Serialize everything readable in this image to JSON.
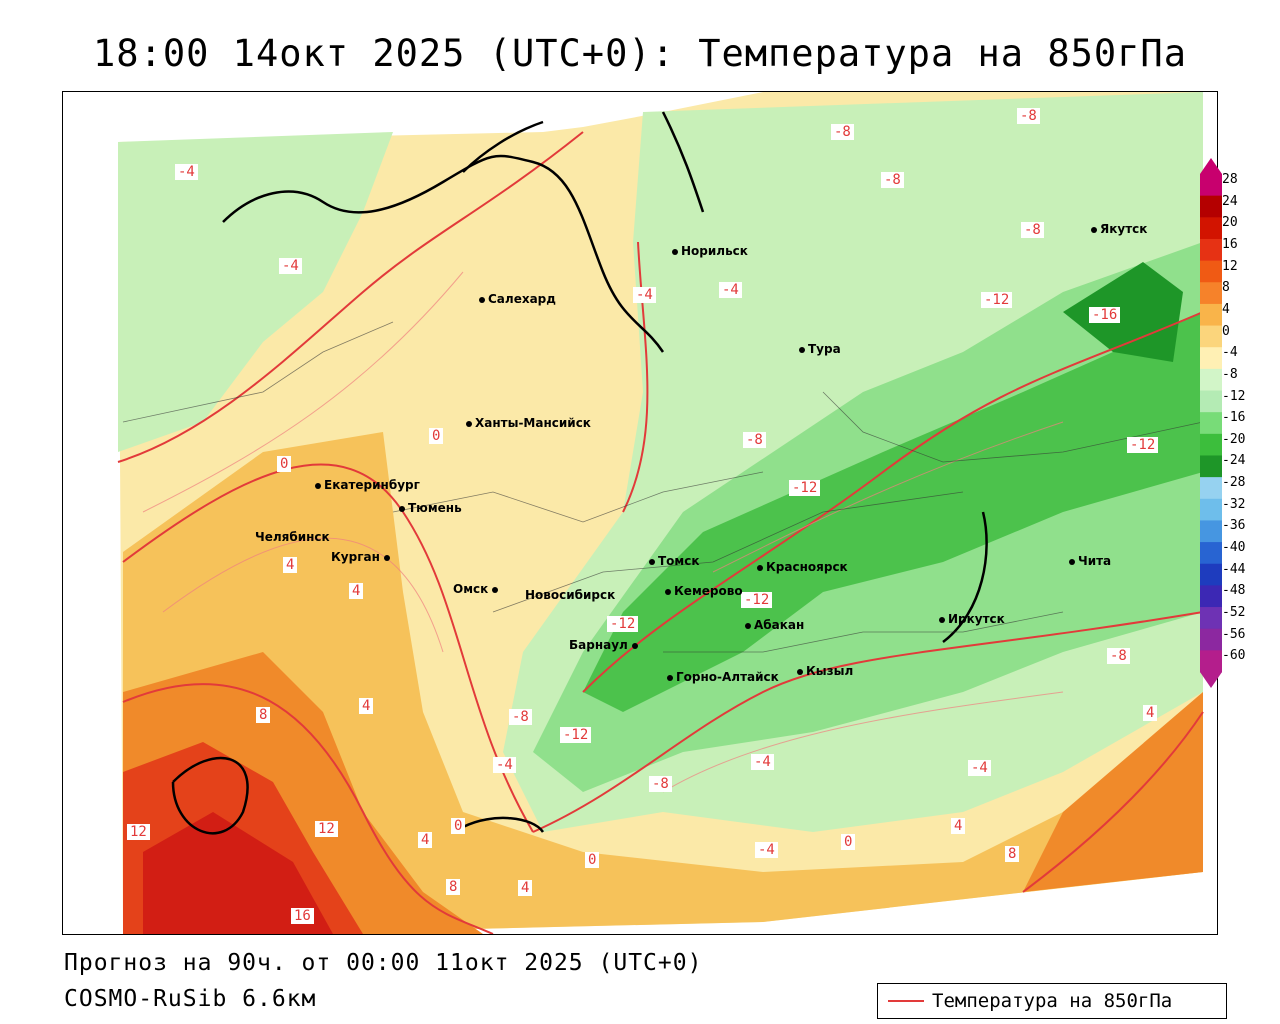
{
  "title": "18:00 14окт 2025 (UTC+0): Температура на 850гПа",
  "forecast": "Прогноз на 90ч. от 00:00 11окт 2025 (UTC+0)",
  "model": "COSMO-RuSib 6.6км",
  "legend": {
    "label": "Температура на 850гПа",
    "line_color": "#e23a3a"
  },
  "colorbar": {
    "ticks": [
      "28",
      "24",
      "20",
      "16",
      "12",
      "8",
      "4",
      "0",
      "-4",
      "-8",
      "-12",
      "-16",
      "-20",
      "-24",
      "-28",
      "-32",
      "-36",
      "-40",
      "-44",
      "-48",
      "-52",
      "-56",
      "-60"
    ],
    "colors": [
      "#c8006e",
      "#b40000",
      "#d21400",
      "#e63214",
      "#f05a14",
      "#f6822a",
      "#f9b44a",
      "#fbd57c",
      "#fff0b4",
      "#d2f5c8",
      "#b4ebb4",
      "#78dc78",
      "#3cbe3c",
      "#1e9628",
      "#96d2f0",
      "#6ebeeb",
      "#4696e1",
      "#2864d2",
      "#1e3cbe",
      "#3c28b4",
      "#6e32b4",
      "#8c28a0",
      "#b41e8c"
    ]
  },
  "cities": [
    {
      "name": "Норильск"
    },
    {
      "name": "Якутск"
    },
    {
      "name": "Салехард"
    },
    {
      "name": "Тура"
    },
    {
      "name": "Ханты-Мансийск"
    },
    {
      "name": "Екатеринбург"
    },
    {
      "name": "Тюмень"
    },
    {
      "name": "Челябинск"
    },
    {
      "name": "Курган"
    },
    {
      "name": "Омск"
    },
    {
      "name": "Новосибирск"
    },
    {
      "name": "Томск"
    },
    {
      "name": "Красноярск"
    },
    {
      "name": "Кемерово"
    },
    {
      "name": "Абакан"
    },
    {
      "name": "Барнаул"
    },
    {
      "name": "Горно-Алтайск"
    },
    {
      "name": "Кызыл"
    },
    {
      "name": "Иркутск"
    },
    {
      "name": "Чита"
    }
  ],
  "isotherm_labels": [
    "-4",
    "-8",
    "-12",
    "-16",
    "0",
    "4",
    "8",
    "12",
    "16"
  ]
}
